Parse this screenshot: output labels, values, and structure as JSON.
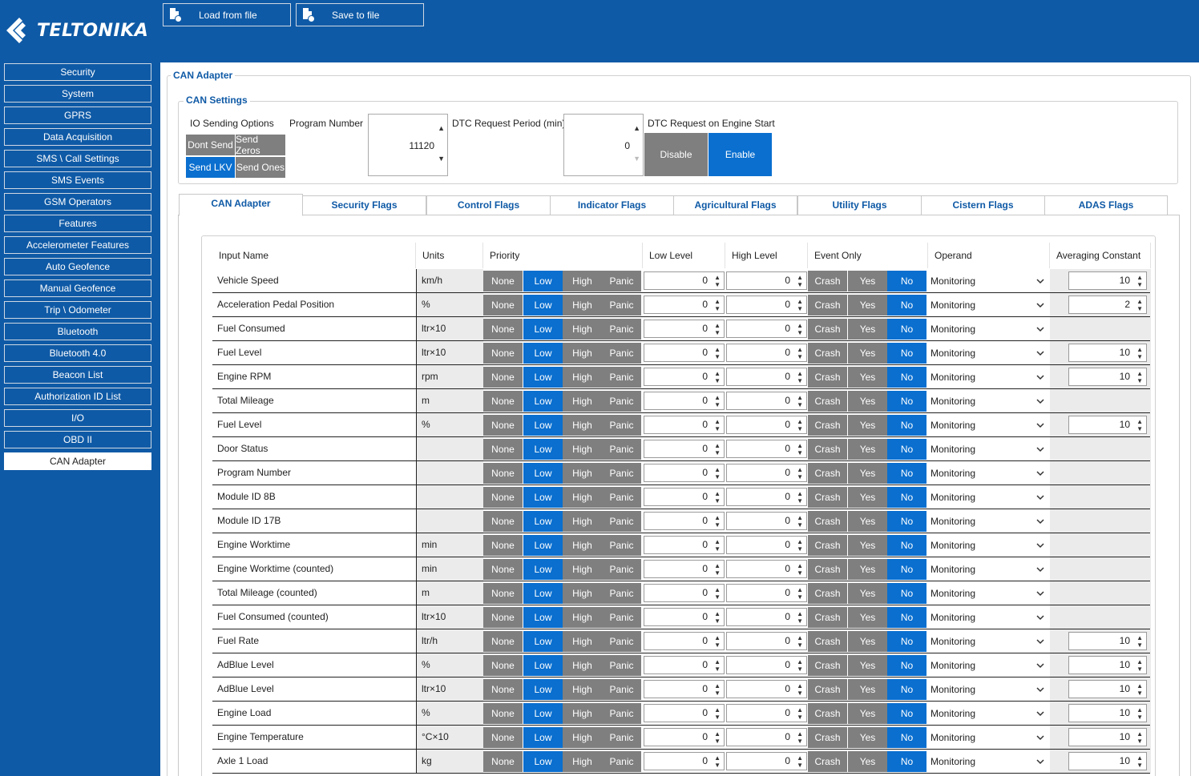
{
  "brand": {
    "name": "TELTONIKA"
  },
  "toolbar": {
    "load_label": "Load from file",
    "save_label": "Save to file"
  },
  "sidebar": {
    "items": [
      {
        "label": "Security"
      },
      {
        "label": "System"
      },
      {
        "label": "GPRS"
      },
      {
        "label": "Data Acquisition"
      },
      {
        "label": "SMS \\ Call Settings"
      },
      {
        "label": "SMS Events"
      },
      {
        "label": "GSM Operators"
      },
      {
        "label": "Features"
      },
      {
        "label": "Accelerometer Features"
      },
      {
        "label": "Auto Geofence"
      },
      {
        "label": "Manual Geofence"
      },
      {
        "label": "Trip \\ Odometer"
      },
      {
        "label": "Bluetooth"
      },
      {
        "label": "Bluetooth 4.0"
      },
      {
        "label": "Beacon List"
      },
      {
        "label": "Authorization ID List"
      },
      {
        "label": "I/O"
      },
      {
        "label": "OBD II"
      },
      {
        "label": "CAN Adapter"
      }
    ],
    "active": "CAN Adapter"
  },
  "page": {
    "group_title": "CAN Adapter",
    "settings_title": "CAN Settings"
  },
  "settings": {
    "io_sending_label": "IO Sending Options",
    "io_options": [
      "Dont Send",
      "Send Zeros",
      "Send LKV",
      "Send Ones"
    ],
    "io_selected": "Send LKV",
    "program_number_label": "Program Number",
    "program_number_value": "11120",
    "dtc_period_label": "DTC Request Period (min)",
    "dtc_period_value": "0",
    "dtc_engine_label": "DTC Request on Engine Start",
    "dtc_disable": "Disable",
    "dtc_enable": "Enable",
    "dtc_selected": "Enable"
  },
  "tabs": [
    "CAN Adapter",
    "Security Flags",
    "Control Flags",
    "Indicator Flags",
    "Agricultural Flags",
    "Utility Flags",
    "Cistern Flags",
    "ADAS Flags"
  ],
  "active_tab": "CAN Adapter",
  "table": {
    "headers": [
      "Input Name",
      "Units",
      "Priority",
      "Low Level",
      "High Level",
      "Event Only",
      "Operand",
      "Averaging Constant"
    ],
    "priority_options": [
      "None",
      "Low",
      "High",
      "Panic"
    ],
    "event_options": [
      "Crash",
      "Yes",
      "No"
    ],
    "rows": [
      {
        "name": "Vehicle Speed",
        "units": "km/h",
        "low": "0",
        "high": "0",
        "operand": "Monitoring",
        "avg": "10"
      },
      {
        "name": "Acceleration Pedal Position",
        "units": "%",
        "low": "0",
        "high": "0",
        "operand": "Monitoring",
        "avg": "2"
      },
      {
        "name": "Fuel Consumed",
        "units": "ltr×10",
        "low": "0",
        "high": "0",
        "operand": "Monitoring",
        "avg": ""
      },
      {
        "name": "Fuel Level",
        "units": "ltr×10",
        "low": "0",
        "high": "0",
        "operand": "Monitoring",
        "avg": "10"
      },
      {
        "name": "Engine RPM",
        "units": "rpm",
        "low": "0",
        "high": "0",
        "operand": "Monitoring",
        "avg": "10"
      },
      {
        "name": "Total Mileage",
        "units": "m",
        "low": "0",
        "high": "0",
        "operand": "Monitoring",
        "avg": ""
      },
      {
        "name": "Fuel Level",
        "units": "%",
        "low": "0",
        "high": "0",
        "operand": "Monitoring",
        "avg": "10"
      },
      {
        "name": "Door Status",
        "units": "",
        "low": "0",
        "high": "0",
        "operand": "Monitoring",
        "avg": ""
      },
      {
        "name": "Program Number",
        "units": "",
        "low": "0",
        "high": "0",
        "operand": "Monitoring",
        "avg": ""
      },
      {
        "name": "Module ID 8B",
        "units": "",
        "low": "0",
        "high": "0",
        "operand": "Monitoring",
        "avg": ""
      },
      {
        "name": "Module ID 17B",
        "units": "",
        "low": "0",
        "high": "0",
        "operand": "Monitoring",
        "avg": ""
      },
      {
        "name": "Engine Worktime",
        "units": "min",
        "low": "0",
        "high": "0",
        "operand": "Monitoring",
        "avg": ""
      },
      {
        "name": "Engine Worktime (counted)",
        "units": "min",
        "low": "0",
        "high": "0",
        "operand": "Monitoring",
        "avg": ""
      },
      {
        "name": "Total Mileage (counted)",
        "units": "m",
        "low": "0",
        "high": "0",
        "operand": "Monitoring",
        "avg": ""
      },
      {
        "name": "Fuel Consumed (counted)",
        "units": "ltr×10",
        "low": "0",
        "high": "0",
        "operand": "Monitoring",
        "avg": ""
      },
      {
        "name": "Fuel Rate",
        "units": "ltr/h",
        "low": "0",
        "high": "0",
        "operand": "Monitoring",
        "avg": "10"
      },
      {
        "name": "AdBlue Level",
        "units": "%",
        "low": "0",
        "high": "0",
        "operand": "Monitoring",
        "avg": "10"
      },
      {
        "name": "AdBlue Level",
        "units": "ltr×10",
        "low": "0",
        "high": "0",
        "operand": "Monitoring",
        "avg": "10"
      },
      {
        "name": "Engine Load",
        "units": "%",
        "low": "0",
        "high": "0",
        "operand": "Monitoring",
        "avg": "10"
      },
      {
        "name": "Engine Temperature",
        "units": "°C×10",
        "low": "0",
        "high": "0",
        "operand": "Monitoring",
        "avg": "10"
      },
      {
        "name": "Axle 1 Load",
        "units": "kg",
        "low": "0",
        "high": "0",
        "operand": "Monitoring",
        "avg": "10"
      }
    ],
    "selected_priority": "Low",
    "selected_event": "No"
  },
  "colors": {
    "brand_blue": "#0f5aa6",
    "active_blue": "#0a6fcf",
    "button_gray": "#7f7f7f"
  }
}
